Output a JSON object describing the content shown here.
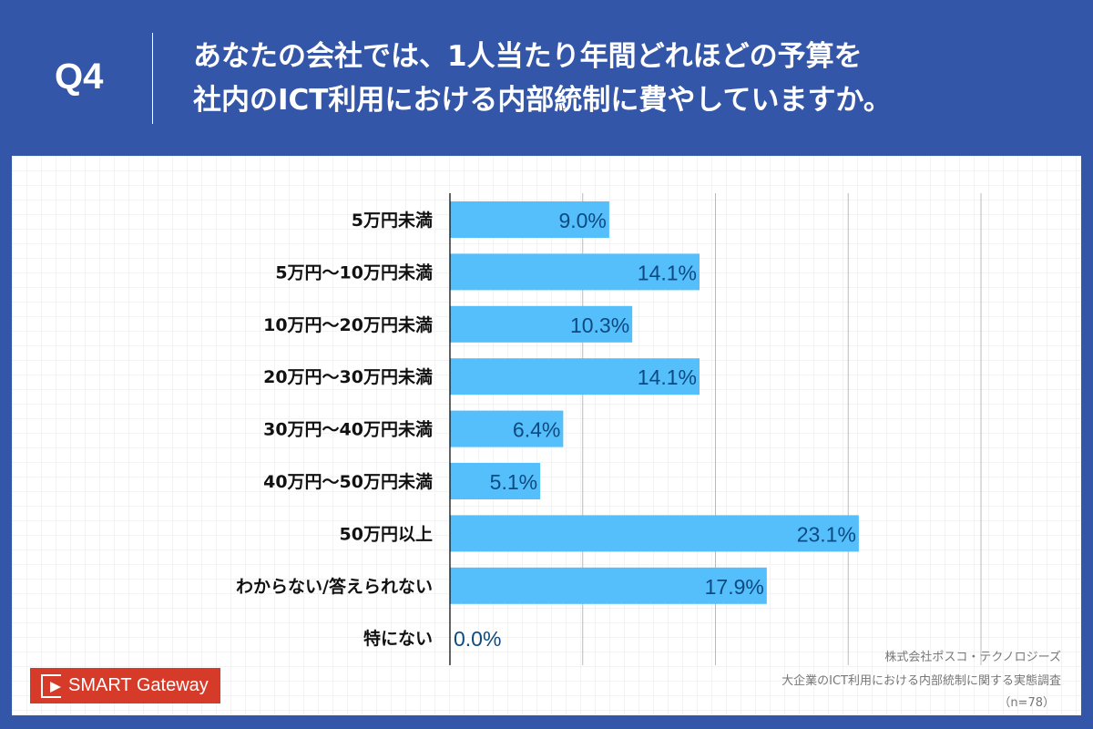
{
  "header": {
    "question": "Q4",
    "title_line1": "あなたの会社では、1人当たり年間どれほどの予算を",
    "title_line2": "社内のICT利用における内部統制に費やしていますか。"
  },
  "chart_data": {
    "type": "bar",
    "orientation": "horizontal",
    "categories": [
      "5万円未満",
      "5万円〜10万円未満",
      "10万円〜20万円未満",
      "20万円〜30万円未満",
      "30万円〜40万円未満",
      "40万円〜50万円未満",
      "50万円以上",
      "わからない/答えられない",
      "特にない"
    ],
    "values": [
      9.0,
      14.1,
      10.3,
      14.1,
      6.4,
      5.1,
      23.1,
      17.9,
      0.0
    ],
    "data_labels": [
      "9.0%",
      "14.1%",
      "10.3%",
      "14.1%",
      "6.4%",
      "5.1%",
      "23.1%",
      "17.9%",
      "0.0%"
    ],
    "xlim": [
      0,
      30
    ],
    "grid": true,
    "grid_step": 7.5,
    "bar_color": "#55bffc",
    "label_color": "#0d4a80"
  },
  "source": {
    "company": "株式会社ポスコ・テクノロジーズ",
    "survey": "大企業のICT利用における内部統制に関する実態調査",
    "n": "（n=78）"
  },
  "logo": {
    "text": "SMART Gateway",
    "color": "#d63b2a"
  },
  "colors": {
    "background": "#3356a8"
  }
}
